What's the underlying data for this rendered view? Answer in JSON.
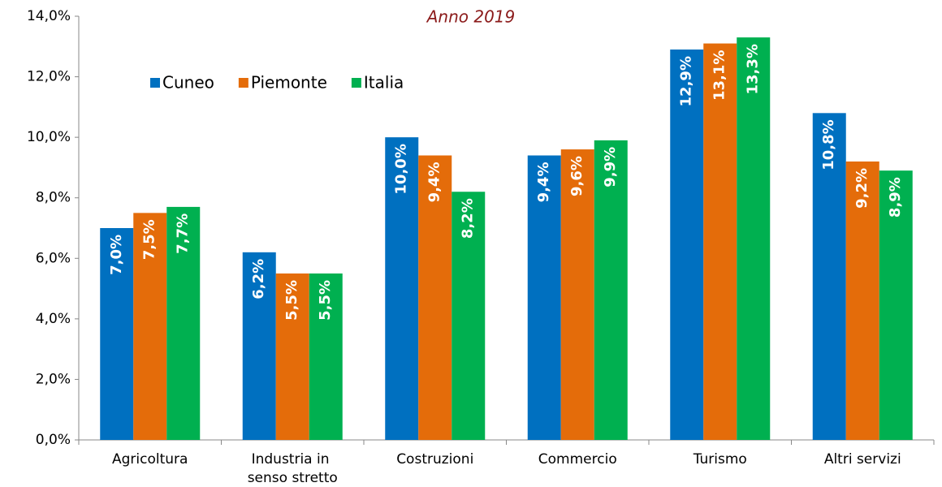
{
  "chart_data": {
    "type": "bar",
    "subtitle": "Anno 2019",
    "categories": [
      "Agricoltura",
      "Industria in senso stretto",
      "Costruzioni",
      "Commercio",
      "Turismo",
      "Altri servizi"
    ],
    "series": [
      {
        "name": "Cuneo",
        "color": "#0070c0",
        "values": [
          7.0,
          6.2,
          10.0,
          9.4,
          12.9,
          10.8
        ],
        "value_labels": [
          "7,0%",
          "6,2%",
          "10,0%",
          "9,4%",
          "12,9%",
          "10,8%"
        ]
      },
      {
        "name": "Piemonte",
        "color": "#e46c0a",
        "values": [
          7.5,
          5.5,
          9.4,
          9.6,
          13.1,
          9.2
        ],
        "value_labels": [
          "7,5%",
          "5,5%",
          "9,4%",
          "9,6%",
          "13,1%",
          "9,2%"
        ]
      },
      {
        "name": "Italia",
        "color": "#00b050",
        "values": [
          7.7,
          5.5,
          8.2,
          9.9,
          13.3,
          8.9
        ],
        "value_labels": [
          "7,7%",
          "5,5%",
          "8,2%",
          "9,9%",
          "13,3%",
          "8,9%"
        ]
      }
    ],
    "ylim": [
      0,
      14
    ],
    "yticks": [
      {
        "value": 0,
        "label": "0,0%"
      },
      {
        "value": 2,
        "label": "2,0%"
      },
      {
        "value": 4,
        "label": "4,0%"
      },
      {
        "value": 6,
        "label": "6,0%"
      },
      {
        "value": 8,
        "label": "8,0%"
      },
      {
        "value": 10,
        "label": "10,0%"
      },
      {
        "value": 12,
        "label": "12,0%"
      },
      {
        "value": 14,
        "label": "14,0%"
      }
    ],
    "grid": false,
    "legend": "top-left"
  }
}
